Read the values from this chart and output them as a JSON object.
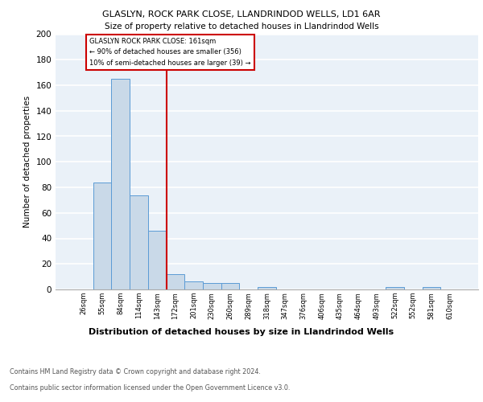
{
  "title1": "GLASLYN, ROCK PARK CLOSE, LLANDRINDOD WELLS, LD1 6AR",
  "title2": "Size of property relative to detached houses in Llandrindod Wells",
  "xlabel": "Distribution of detached houses by size in Llandrindod Wells",
  "ylabel": "Number of detached properties",
  "bin_labels": [
    "26sqm",
    "55sqm",
    "84sqm",
    "114sqm",
    "143sqm",
    "172sqm",
    "201sqm",
    "230sqm",
    "260sqm",
    "289sqm",
    "318sqm",
    "347sqm",
    "376sqm",
    "406sqm",
    "435sqm",
    "464sqm",
    "493sqm",
    "522sqm",
    "552sqm",
    "581sqm",
    "610sqm"
  ],
  "bar_heights": [
    0,
    84,
    165,
    74,
    46,
    12,
    6,
    5,
    5,
    0,
    2,
    0,
    0,
    0,
    0,
    0,
    0,
    2,
    0,
    2,
    0
  ],
  "bar_color": "#c9d9e8",
  "bar_edge_color": "#5b9bd5",
  "red_line_bin": 5,
  "red_line_color": "#cc0000",
  "annotation_line1": "GLASLYN ROCK PARK CLOSE: 161sqm",
  "annotation_line2": "← 90% of detached houses are smaller (356)",
  "annotation_line3": "10% of semi-detached houses are larger (39) →",
  "annotation_box_color": "white",
  "annotation_box_edge_color": "#cc0000",
  "ylim": [
    0,
    200
  ],
  "yticks": [
    0,
    20,
    40,
    60,
    80,
    100,
    120,
    140,
    160,
    180,
    200
  ],
  "footer1": "Contains HM Land Registry data © Crown copyright and database right 2024.",
  "footer2": "Contains public sector information licensed under the Open Government Licence v3.0.",
  "plot_bg_color": "#eaf1f8",
  "grid_color": "white"
}
